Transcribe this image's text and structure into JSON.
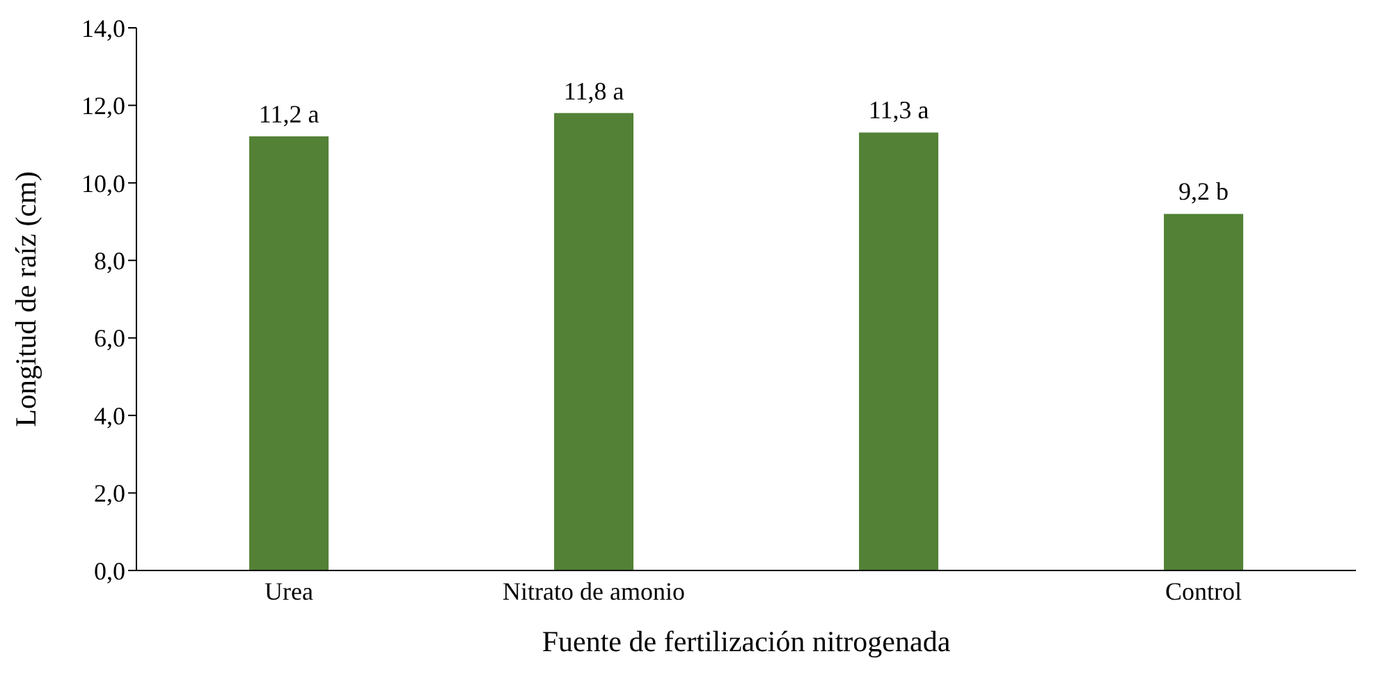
{
  "chart_data": {
    "type": "bar",
    "xlabel": "Fuente de fertilización nitrogenada",
    "ylabel": "Longitud de raíz (cm)",
    "categories": [
      "Urea",
      "Nitrato de amonio",
      null,
      "Control"
    ],
    "values": [
      11.2,
      11.8,
      11.3,
      9.2
    ],
    "value_labels": [
      "11,2 a",
      "11,8 a",
      "11,3 a",
      "9,2 b"
    ],
    "color": "#538135",
    "ylim": [
      0,
      14
    ],
    "yticks": [
      {
        "value": 0,
        "label": "0,0"
      },
      {
        "value": 2,
        "label": "2,0"
      },
      {
        "value": 4,
        "label": "4,0"
      },
      {
        "value": 6,
        "label": "6,0"
      },
      {
        "value": 8,
        "label": "8,0"
      },
      {
        "value": 10,
        "label": "10,0"
      },
      {
        "value": 12,
        "label": "12,0"
      },
      {
        "value": 14,
        "label": "14,0"
      }
    ],
    "grid": false
  }
}
